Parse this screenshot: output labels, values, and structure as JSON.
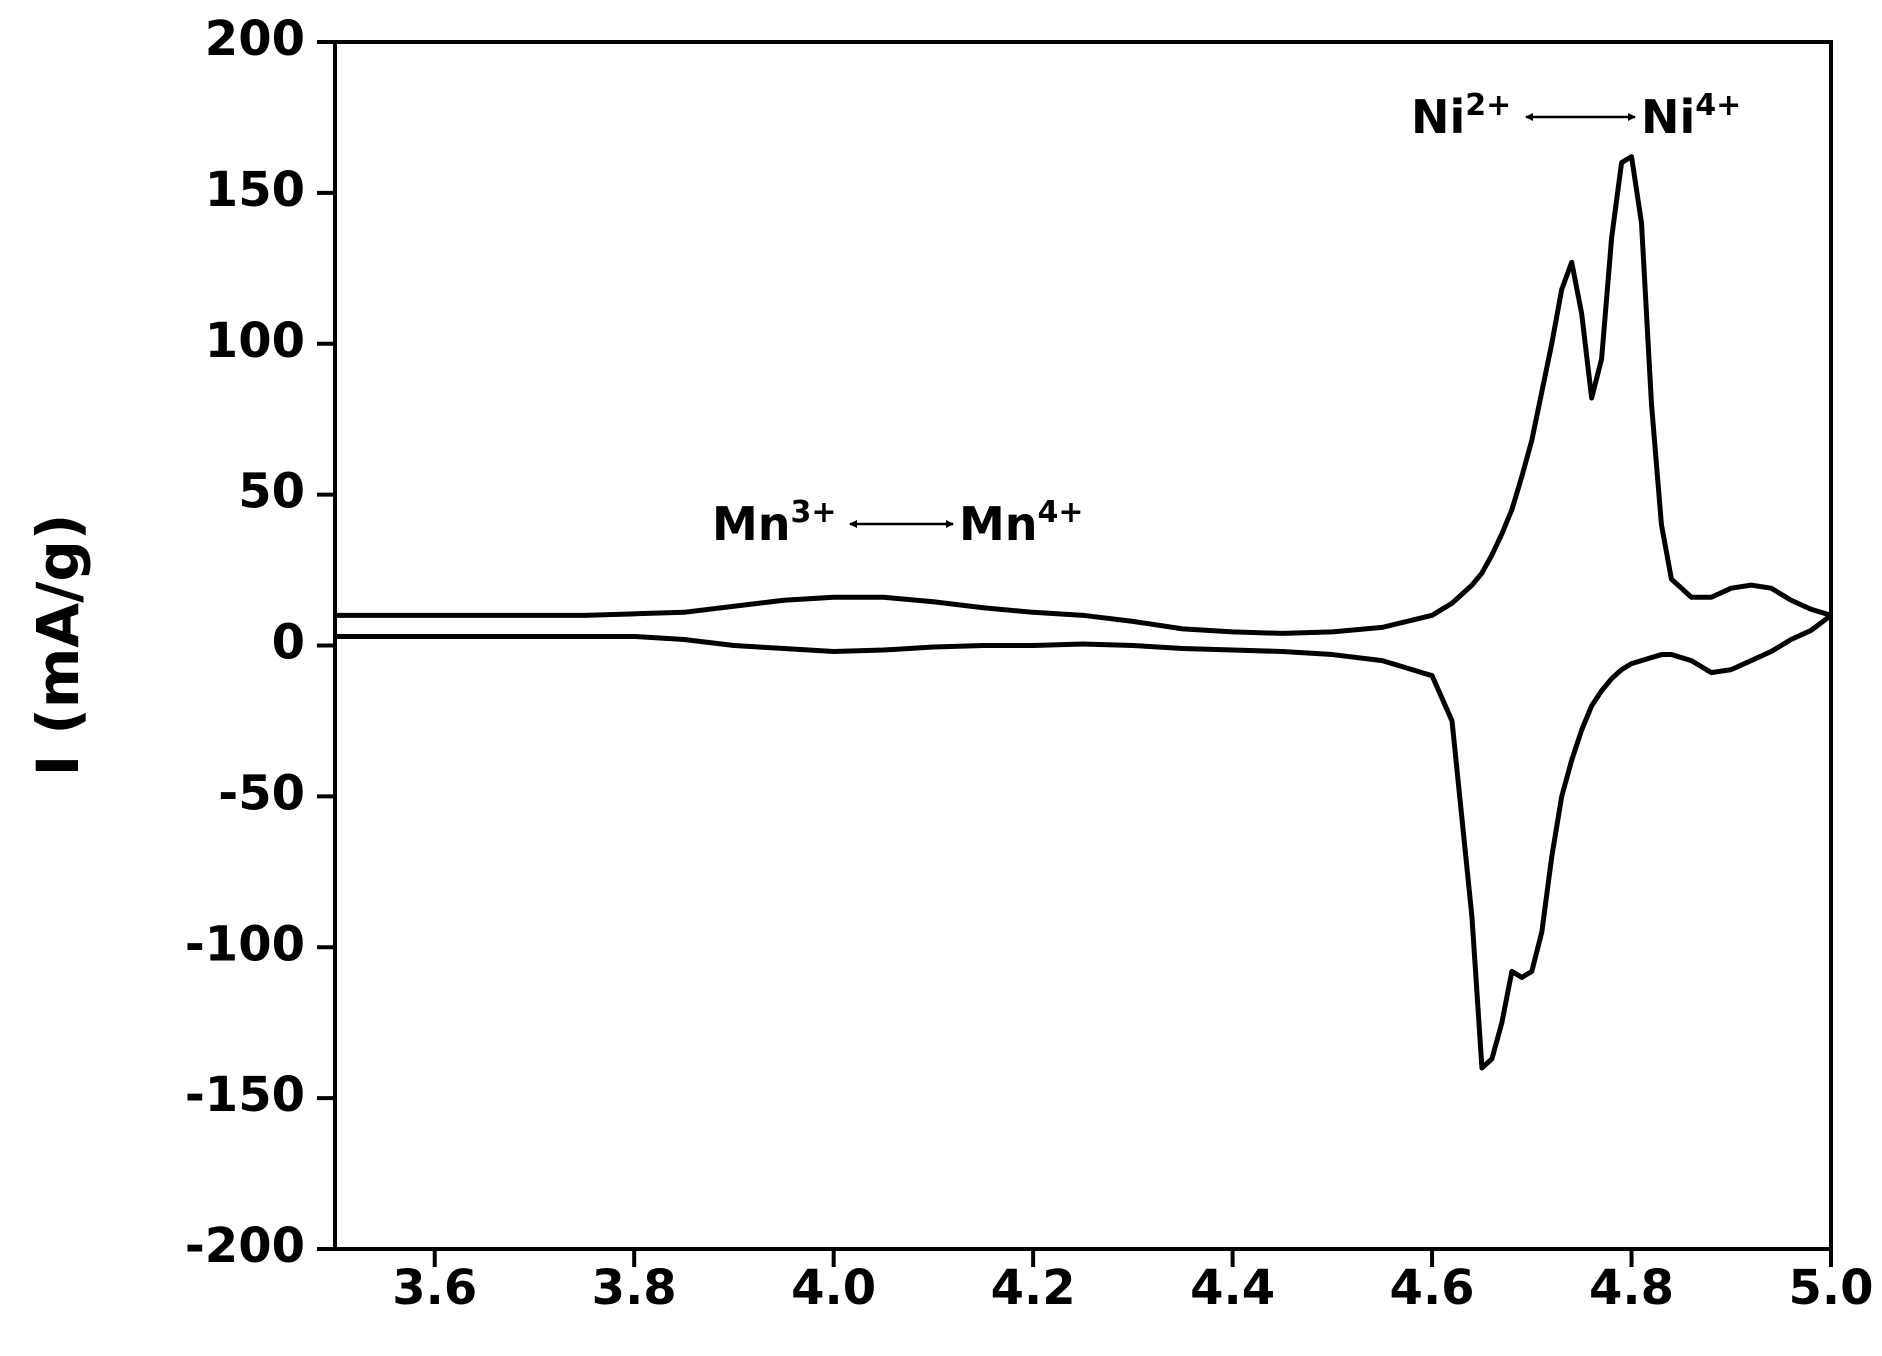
{
  "chart_data": {
    "type": "line",
    "ylabel": "I (mA/g)",
    "x": [
      3.5,
      3.55,
      3.6,
      3.65,
      3.7,
      3.75,
      3.8,
      3.85,
      3.9,
      3.95,
      4.0,
      4.05,
      4.1,
      4.15,
      4.2,
      4.25,
      4.3,
      4.35,
      4.4,
      4.45,
      4.5,
      4.55,
      4.6,
      4.62,
      4.64,
      4.65,
      4.66,
      4.67,
      4.68,
      4.69,
      4.7,
      4.71,
      4.72,
      4.73,
      4.74,
      4.75,
      4.76,
      4.77,
      4.78,
      4.79,
      4.8,
      4.81,
      4.82,
      4.83,
      4.84,
      4.86,
      4.88,
      4.9,
      4.92,
      4.94,
      4.96,
      4.98,
      5.0
    ],
    "series": [
      {
        "color": "#000000",
        "values": [
          10,
          10,
          10,
          10,
          10,
          10,
          10.5,
          11,
          13,
          15,
          16,
          16,
          14.5,
          12.5,
          11,
          10,
          8,
          5.5,
          4.5,
          4,
          4.5,
          6,
          10,
          14,
          20,
          24,
          30,
          37,
          45,
          56,
          68,
          84,
          100,
          118,
          127,
          110,
          82,
          95,
          135,
          160,
          162,
          140,
          80,
          40,
          22,
          16,
          16,
          19,
          20,
          19,
          15,
          12,
          10
        ]
      },
      {
        "color": "#000000",
        "values": [
          3,
          3,
          3,
          3,
          3,
          3,
          3,
          2,
          0,
          -1,
          -2,
          -1.5,
          -0.5,
          0,
          0,
          0.5,
          0,
          -1,
          -1.5,
          -2,
          -3,
          -5,
          -10,
          -25,
          -90,
          -140,
          -137,
          -125,
          -108,
          -110,
          -108,
          -95,
          -70,
          -50,
          -38,
          -28,
          -20,
          -15,
          -11,
          -8,
          -6,
          -5,
          -4,
          -3,
          -3,
          -5,
          -9,
          -8,
          -5,
          -2,
          2,
          5,
          10
        ]
      }
    ],
    "xlim": [
      3.5,
      5.0
    ],
    "xticks": [
      3.6,
      3.8,
      {
        "value": 4.0,
        "label": "4.0"
      },
      4.2,
      4.4,
      4.6,
      4.8,
      {
        "value": 5.0,
        "label": "5.0"
      }
    ],
    "ylim": [
      -200,
      200
    ],
    "yticks": [
      -200,
      -150,
      -100,
      -50,
      0,
      50,
      100,
      150,
      200
    ],
    "annotations": [
      {
        "from": {
          "text": "Mn",
          "sup": "3+"
        },
        "to": {
          "text": "Mn",
          "sup": "4+"
        }
      },
      {
        "from": {
          "text": "Ni",
          "sup": "2+"
        },
        "to": {
          "text": "Ni",
          "sup": "4+"
        }
      }
    ]
  }
}
